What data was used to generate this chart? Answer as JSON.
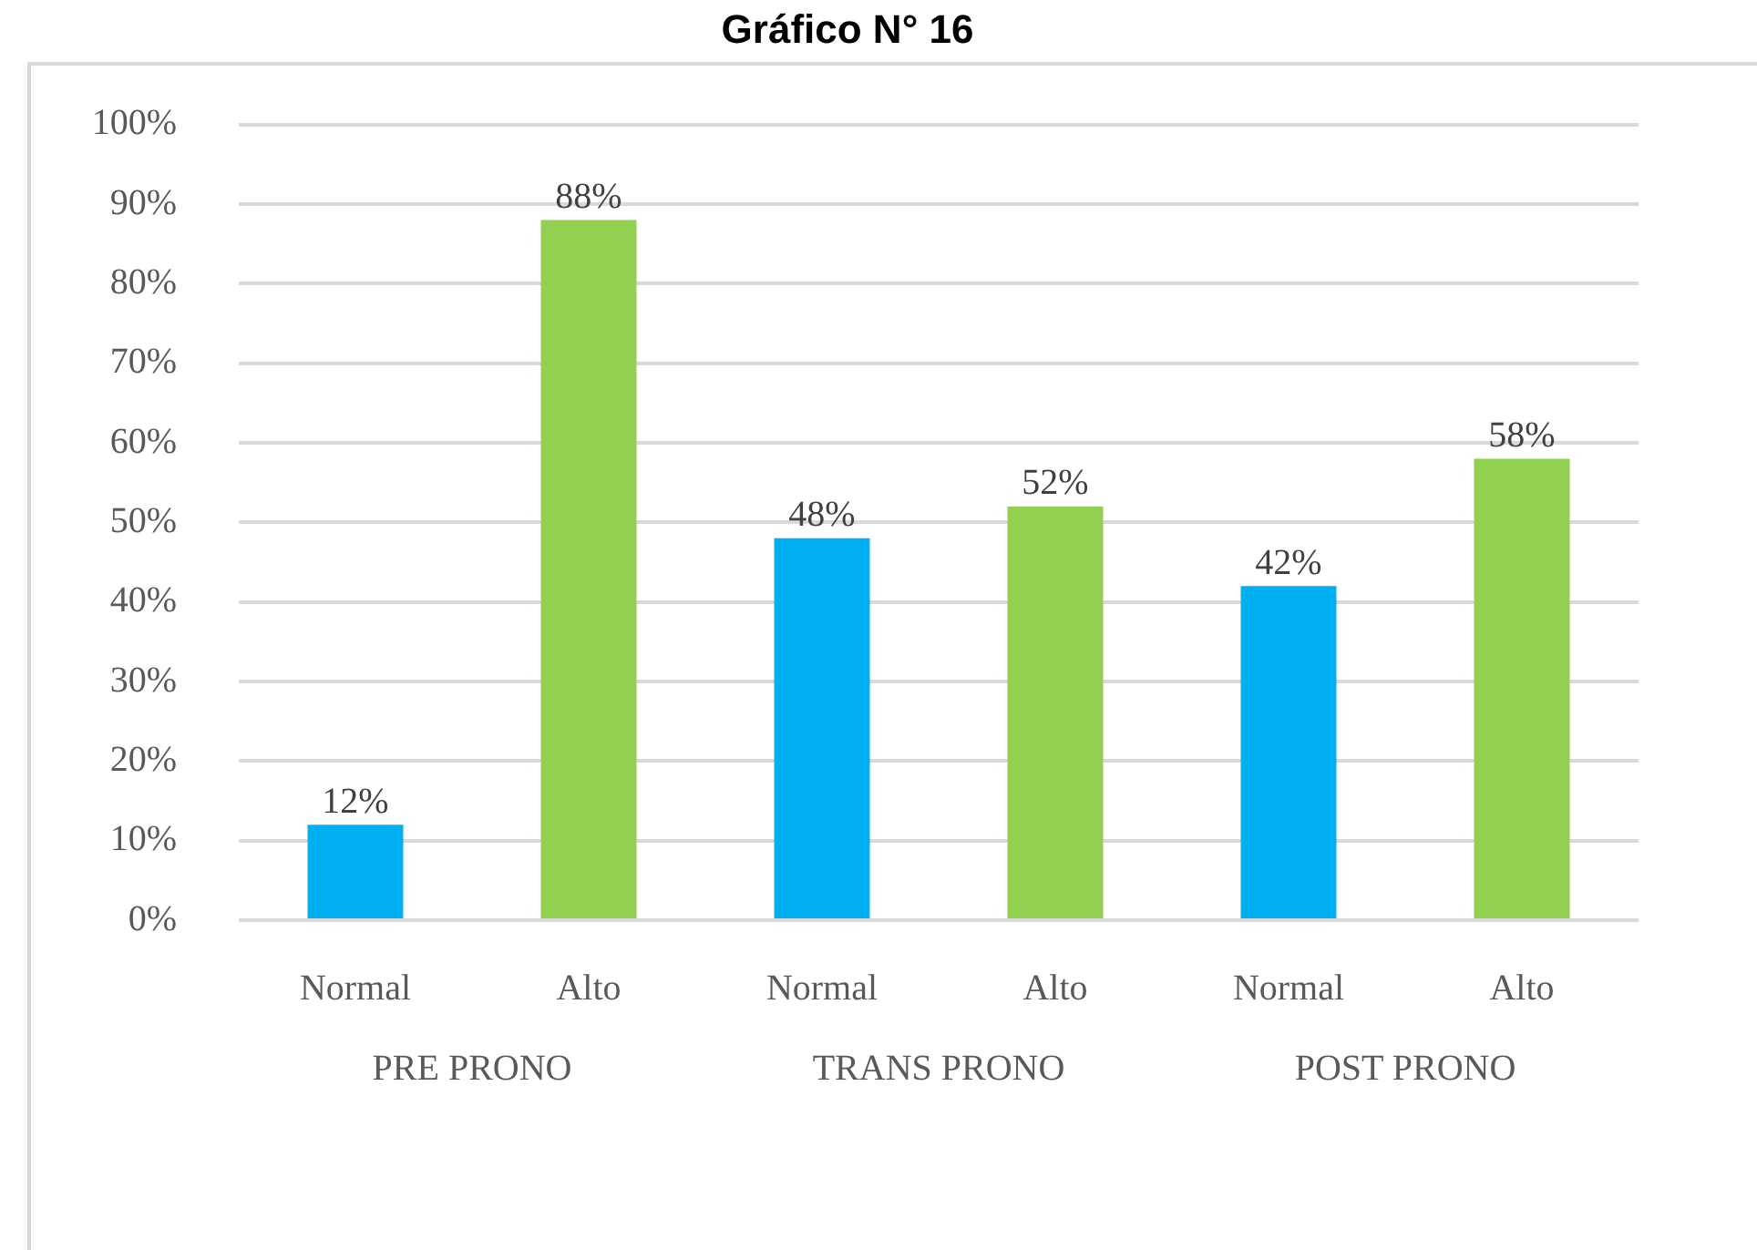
{
  "chart_data": {
    "type": "bar",
    "title": "Gráfico N° 16",
    "categories": [
      "PRE PRONO",
      "TRANS PRONO",
      "POST PRONO"
    ],
    "series": [
      {
        "name": "Normal",
        "color": "#00b0f0",
        "values": [
          12,
          48,
          42
        ],
        "value_labels": [
          "12%",
          "48%",
          "42%"
        ]
      },
      {
        "name": "Alto",
        "color": "#92d050",
        "values": [
          88,
          52,
          58
        ],
        "value_labels": [
          "88%",
          "52%",
          "58%"
        ]
      }
    ],
    "ylim": [
      0,
      100
    ],
    "yticks": [
      {
        "value": 0,
        "label": "0%"
      },
      {
        "value": 10,
        "label": "10%"
      },
      {
        "value": 20,
        "label": "20%"
      },
      {
        "value": 30,
        "label": "30%"
      },
      {
        "value": 40,
        "label": "40%"
      },
      {
        "value": 50,
        "label": "50%"
      },
      {
        "value": 60,
        "label": "60%"
      },
      {
        "value": 70,
        "label": "70%"
      },
      {
        "value": 80,
        "label": "80%"
      },
      {
        "value": 90,
        "label": "90%"
      },
      {
        "value": 100,
        "label": "100%"
      }
    ],
    "grid": "y"
  }
}
